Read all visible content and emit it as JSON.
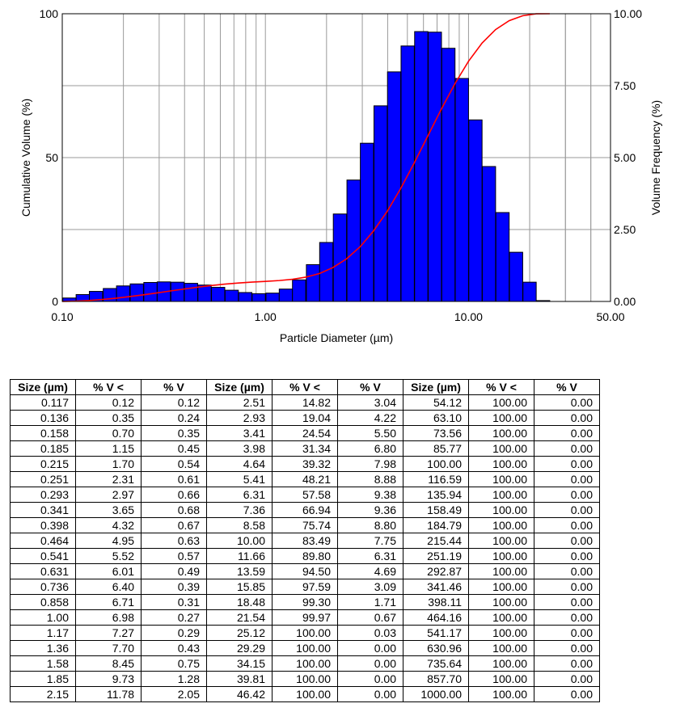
{
  "chart_data": {
    "type": "bar",
    "xlabel": "Particle Diameter (µm)",
    "ylabel": "Cumulative Volume (%)",
    "y2label": "Volume Frequency (%)",
    "xscale": "log",
    "xlim": [
      0.1,
      50.0
    ],
    "ylim": [
      0,
      100
    ],
    "y2lim": [
      0,
      10.0
    ],
    "grid": true,
    "x_ticks": [
      "0.10",
      "1.00",
      "10.00",
      "50.00"
    ],
    "y_ticks": [
      "0",
      "50",
      "100"
    ],
    "y2_ticks": [
      "0.00",
      "2.50",
      "5.00",
      "7.50",
      "10.00"
    ],
    "bar_color": "#0000ff",
    "line_color": "#ff0000",
    "series": [
      {
        "type": "bar",
        "axis": "right",
        "x": [
          0.117,
          0.136,
          0.158,
          0.185,
          0.215,
          0.251,
          0.293,
          0.341,
          0.398,
          0.464,
          0.541,
          0.631,
          0.736,
          0.858,
          1.0,
          1.17,
          1.36,
          1.58,
          1.85,
          2.15,
          2.51,
          2.93,
          3.41,
          3.98,
          4.64,
          5.41,
          6.31,
          7.36,
          8.58,
          10.0,
          11.66,
          13.59,
          15.85,
          18.48,
          21.54,
          25.12
        ],
        "values": [
          0.12,
          0.24,
          0.35,
          0.45,
          0.54,
          0.61,
          0.66,
          0.68,
          0.67,
          0.63,
          0.57,
          0.49,
          0.39,
          0.31,
          0.27,
          0.29,
          0.43,
          0.75,
          1.28,
          2.05,
          3.04,
          4.22,
          5.5,
          6.8,
          7.98,
          8.88,
          9.38,
          9.36,
          8.8,
          7.75,
          6.31,
          4.69,
          3.09,
          1.71,
          0.67,
          0.03
        ]
      },
      {
        "type": "line",
        "axis": "left",
        "x": [
          0.117,
          0.136,
          0.158,
          0.185,
          0.215,
          0.251,
          0.293,
          0.341,
          0.398,
          0.464,
          0.541,
          0.631,
          0.736,
          0.858,
          1.0,
          1.17,
          1.36,
          1.58,
          1.85,
          2.15,
          2.51,
          2.93,
          3.41,
          3.98,
          4.64,
          5.41,
          6.31,
          7.36,
          8.58,
          10.0,
          11.66,
          13.59,
          15.85,
          18.48,
          21.54,
          25.12
        ],
        "values": [
          0.12,
          0.35,
          0.7,
          1.15,
          1.7,
          2.31,
          2.97,
          3.65,
          4.32,
          4.95,
          5.52,
          6.01,
          6.4,
          6.71,
          6.98,
          7.27,
          7.7,
          8.45,
          9.73,
          11.78,
          14.82,
          19.04,
          24.54,
          31.34,
          39.32,
          48.21,
          57.58,
          66.94,
          75.74,
          83.49,
          89.8,
          94.5,
          97.59,
          99.3,
          99.97,
          100.0
        ]
      }
    ]
  },
  "table": {
    "headers": [
      "Size (µm)",
      "% V <",
      "% V",
      "Size (µm)",
      "% V <",
      "% V",
      "Size (µm)",
      "% V <",
      "% V"
    ],
    "rows": [
      [
        "0.117",
        "0.12",
        "0.12",
        "2.51",
        "14.82",
        "3.04",
        "54.12",
        "100.00",
        "0.00"
      ],
      [
        "0.136",
        "0.35",
        "0.24",
        "2.93",
        "19.04",
        "4.22",
        "63.10",
        "100.00",
        "0.00"
      ],
      [
        "0.158",
        "0.70",
        "0.35",
        "3.41",
        "24.54",
        "5.50",
        "73.56",
        "100.00",
        "0.00"
      ],
      [
        "0.185",
        "1.15",
        "0.45",
        "3.98",
        "31.34",
        "6.80",
        "85.77",
        "100.00",
        "0.00"
      ],
      [
        "0.215",
        "1.70",
        "0.54",
        "4.64",
        "39.32",
        "7.98",
        "100.00",
        "100.00",
        "0.00"
      ],
      [
        "0.251",
        "2.31",
        "0.61",
        "5.41",
        "48.21",
        "8.88",
        "116.59",
        "100.00",
        "0.00"
      ],
      [
        "0.293",
        "2.97",
        "0.66",
        "6.31",
        "57.58",
        "9.38",
        "135.94",
        "100.00",
        "0.00"
      ],
      [
        "0.341",
        "3.65",
        "0.68",
        "7.36",
        "66.94",
        "9.36",
        "158.49",
        "100.00",
        "0.00"
      ],
      [
        "0.398",
        "4.32",
        "0.67",
        "8.58",
        "75.74",
        "8.80",
        "184.79",
        "100.00",
        "0.00"
      ],
      [
        "0.464",
        "4.95",
        "0.63",
        "10.00",
        "83.49",
        "7.75",
        "215.44",
        "100.00",
        "0.00"
      ],
      [
        "0.541",
        "5.52",
        "0.57",
        "11.66",
        "89.80",
        "6.31",
        "251.19",
        "100.00",
        "0.00"
      ],
      [
        "0.631",
        "6.01",
        "0.49",
        "13.59",
        "94.50",
        "4.69",
        "292.87",
        "100.00",
        "0.00"
      ],
      [
        "0.736",
        "6.40",
        "0.39",
        "15.85",
        "97.59",
        "3.09",
        "341.46",
        "100.00",
        "0.00"
      ],
      [
        "0.858",
        "6.71",
        "0.31",
        "18.48",
        "99.30",
        "1.71",
        "398.11",
        "100.00",
        "0.00"
      ],
      [
        "1.00",
        "6.98",
        "0.27",
        "21.54",
        "99.97",
        "0.67",
        "464.16",
        "100.00",
        "0.00"
      ],
      [
        "1.17",
        "7.27",
        "0.29",
        "25.12",
        "100.00",
        "0.03",
        "541.17",
        "100.00",
        "0.00"
      ],
      [
        "1.36",
        "7.70",
        "0.43",
        "29.29",
        "100.00",
        "0.00",
        "630.96",
        "100.00",
        "0.00"
      ],
      [
        "1.58",
        "8.45",
        "0.75",
        "34.15",
        "100.00",
        "0.00",
        "735.64",
        "100.00",
        "0.00"
      ],
      [
        "1.85",
        "9.73",
        "1.28",
        "39.81",
        "100.00",
        "0.00",
        "857.70",
        "100.00",
        "0.00"
      ],
      [
        "2.15",
        "11.78",
        "2.05",
        "46.42",
        "100.00",
        "0.00",
        "1000.00",
        "100.00",
        "0.00"
      ]
    ]
  }
}
